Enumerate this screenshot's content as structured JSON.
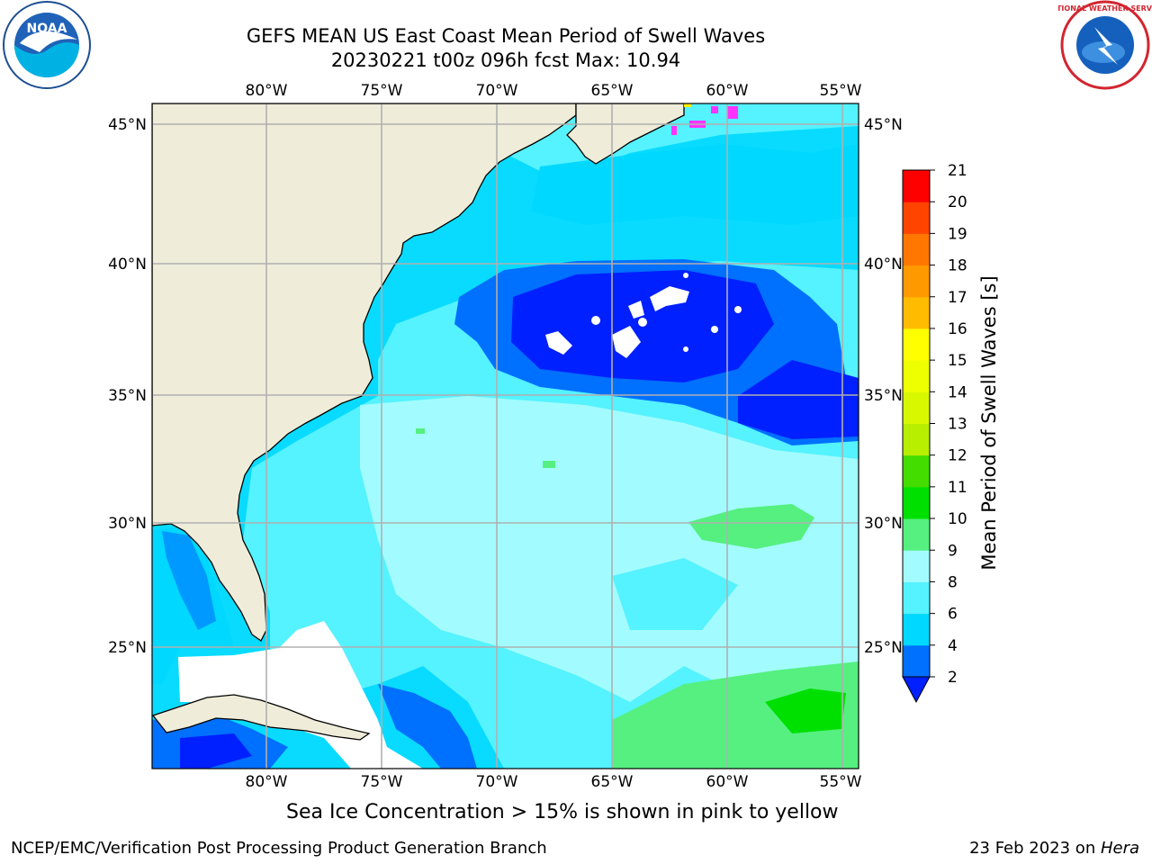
{
  "header": {
    "title_line1": "GEFS MEAN US East Coast Mean Period of Swell Waves",
    "title_line2": "20230221 t00z 096h fcst   Max: 10.94"
  },
  "logos": {
    "left": {
      "icon": "noaa-logo",
      "label": "NOAA"
    },
    "right": {
      "icon": "nws-logo",
      "label": "NATIONAL WEATHER SERVICE"
    }
  },
  "map": {
    "lon_ticks": [
      "80°W",
      "75°W",
      "70°W",
      "65°W",
      "60°W",
      "55°W"
    ],
    "lat_ticks": [
      "45°N",
      "40°N",
      "35°N",
      "30°N",
      "25°N"
    ],
    "colors": {
      "land": "#efedd9",
      "coast": "#000000",
      "grid": "#b0b0b0",
      "sea_ice_pink": "#ff33ff",
      "sea_ice_yellow": "#ffee00"
    }
  },
  "colorbar": {
    "label": "Mean Period of Swell Waves [s]",
    "tick_labels": [
      "2",
      "4",
      "6",
      "8",
      "9",
      "10",
      "11",
      "12",
      "13",
      "14",
      "15",
      "16",
      "17",
      "18",
      "19",
      "20",
      "21"
    ],
    "bins": [
      {
        "from": 2,
        "to": 4,
        "color": "#0070ff"
      },
      {
        "from": 4,
        "to": 6,
        "color": "#00d8ff"
      },
      {
        "from": 6,
        "to": 8,
        "color": "#55f2ff"
      },
      {
        "from": 8,
        "to": 9,
        "color": "#a2fcff"
      },
      {
        "from": 9,
        "to": 10,
        "color": "#55f080"
      },
      {
        "from": 10,
        "to": 11,
        "color": "#00e000"
      },
      {
        "from": 11,
        "to": 12,
        "color": "#44dd00"
      },
      {
        "from": 12,
        "to": 13,
        "color": "#b8ee00"
      },
      {
        "from": 13,
        "to": 14,
        "color": "#d8f800"
      },
      {
        "from": 14,
        "to": 15,
        "color": "#eeff00"
      },
      {
        "from": 15,
        "to": 16,
        "color": "#ffff00"
      },
      {
        "from": 16,
        "to": 17,
        "color": "#ffbb00"
      },
      {
        "from": 17,
        "to": 18,
        "color": "#ff9900"
      },
      {
        "from": 18,
        "to": 19,
        "color": "#ff7700"
      },
      {
        "from": 19,
        "to": 20,
        "color": "#ff4400"
      },
      {
        "from": 20,
        "to": 21,
        "color": "#ff0000"
      }
    ],
    "under_color": "#0020ff"
  },
  "footer": {
    "sea_ice_note": "Sea Ice Concentration > 15% is shown in pink to yellow",
    "credit": "NCEP/EMC/Verification Post Processing Product Generation Branch",
    "date_text": "23 Feb 2023 on ",
    "machine": "Hera"
  }
}
